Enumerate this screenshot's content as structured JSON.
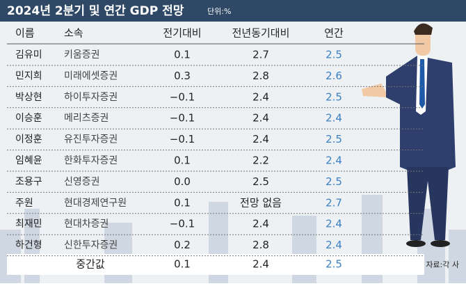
{
  "header": {
    "title": "2024년 2분기 및 연간 GDP 전망",
    "unit": "단위:%"
  },
  "table": {
    "columns": [
      "이름",
      "소속",
      "전기대비",
      "전년동기대비",
      "연간"
    ],
    "rows": [
      [
        "김유미",
        "키움증권",
        "0.1",
        "2.7",
        "2.5"
      ],
      [
        "민지희",
        "미래에셋증권",
        "0.3",
        "2.8",
        "2.6"
      ],
      [
        "박상현",
        "하이투자증권",
        "−0.1",
        "2.4",
        "2.5"
      ],
      [
        "이승훈",
        "메리츠증권",
        "−0.1",
        "2.4",
        "2.4"
      ],
      [
        "이정훈",
        "유진투자증권",
        "−0.1",
        "2.4",
        "2.5"
      ],
      [
        "임혜윤",
        "한화투자증권",
        "0.1",
        "2.2",
        "2.4"
      ],
      [
        "조용구",
        "신영증권",
        "0.0",
        "2.5",
        "2.5"
      ],
      [
        "주원",
        "현대경제연구원",
        "0.1",
        "전망 없음",
        "2.7"
      ],
      [
        "최재민",
        "현대차증권",
        "−0.1",
        "2.4",
        "2.4"
      ],
      [
        "하건형",
        "신한투자증권",
        "0.2",
        "2.8",
        "2.4"
      ]
    ],
    "median": [
      "중간값",
      "0.1",
      "2.4",
      "2.5"
    ]
  },
  "source": "자료:각 사"
}
